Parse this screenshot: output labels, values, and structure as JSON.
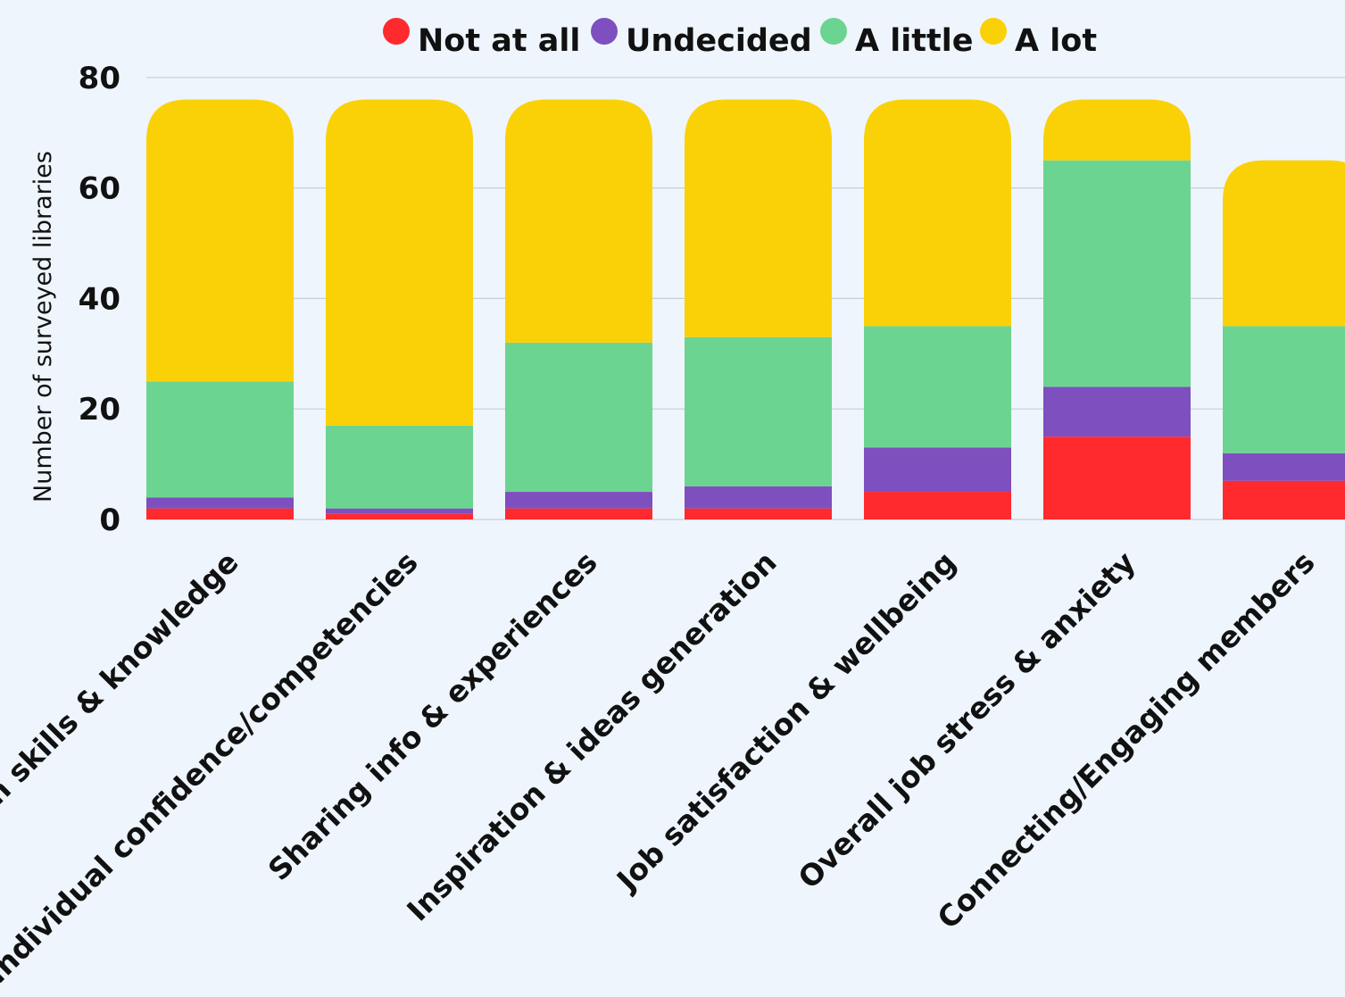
{
  "chart_data": {
    "type": "bar",
    "stacked": true,
    "categories": [
      "Own skills & knowledge",
      "Individual confidence/competencies",
      "Sharing info & experiences",
      "Inspiration & ideas generation",
      "Job satisfaction & wellbeing",
      "Overall job stress & anxiety",
      "Connecting/Engaging members"
    ],
    "series": [
      {
        "name": "Not at all",
        "color": "#FF2A2E",
        "values": [
          2,
          1,
          2,
          2,
          5,
          15,
          7
        ]
      },
      {
        "name": "Undecided",
        "color": "#7E4FBF",
        "values": [
          2,
          1,
          3,
          4,
          8,
          9,
          5
        ]
      },
      {
        "name": "A little",
        "color": "#6CD491",
        "values": [
          21,
          15,
          27,
          27,
          22,
          41,
          23
        ]
      },
      {
        "name": "A lot",
        "color": "#FAD107",
        "values": [
          51,
          59,
          44,
          43,
          41,
          11,
          30
        ]
      }
    ],
    "ylabel": "Number of surveyed  libraries",
    "ylim": [
      0,
      80
    ],
    "yticks": [
      0,
      20,
      40,
      60,
      80
    ],
    "grid": true,
    "legend_position": "top"
  }
}
